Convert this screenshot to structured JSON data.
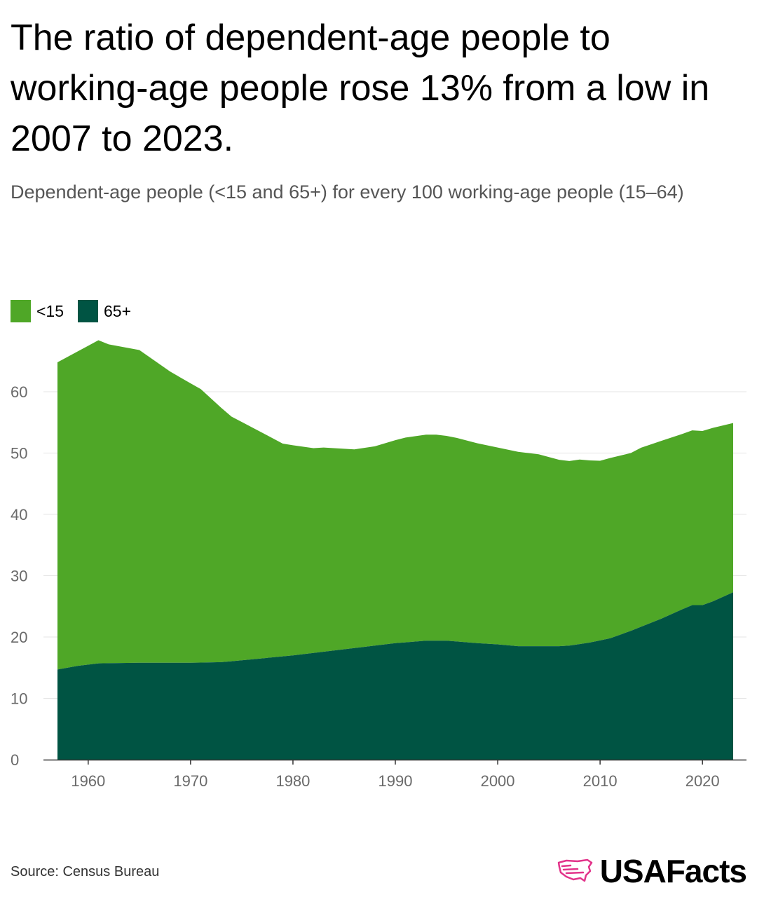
{
  "title": "The ratio of dependent-age people to working-age people rose 13% from a low in 2007 to 2023.",
  "subtitle": "Dependent-age people (<15 and 65+) for every 100 working-age people (15–64)",
  "source": "Source: Census Bureau",
  "logo": {
    "text": "USAFacts",
    "icon": "usa-map-icon"
  },
  "colors": {
    "under15": "#4fa727",
    "over65": "#005443",
    "grid": "#e4e4e4",
    "axis": "#333333"
  },
  "chart_data": {
    "type": "area",
    "stacked": true,
    "xlim": [
      1957,
      2023
    ],
    "ylim": [
      0,
      65
    ],
    "yticks": [
      0,
      10,
      20,
      30,
      40,
      50,
      60
    ],
    "xticks": [
      1960,
      1970,
      1980,
      1990,
      2000,
      2010,
      2020
    ],
    "grid": true,
    "legend_position": "top-left",
    "series": [
      {
        "name": "65+",
        "x": [
          1957,
          1959,
          1961,
          1965,
          1970,
          1973,
          1975,
          1980,
          1983,
          1986,
          1990,
          1993,
          1995,
          1998,
          2000,
          2002,
          2006,
          2007,
          2009,
          2011,
          2013,
          2016,
          2018,
          2019,
          2020,
          2021,
          2023
        ],
        "values": [
          14.7,
          15.3,
          15.7,
          15.8,
          15.8,
          15.9,
          16.2,
          17.0,
          17.6,
          18.2,
          19.0,
          19.4,
          19.4,
          19.0,
          18.8,
          18.5,
          18.5,
          18.6,
          19.1,
          19.8,
          21.0,
          23.0,
          24.5,
          25.2,
          25.2,
          25.8,
          27.3
        ]
      },
      {
        "name": "<15",
        "x": [
          1957,
          1959,
          1961,
          1962,
          1965,
          1968,
          1971,
          1974,
          1977,
          1979,
          1982,
          1983,
          1986,
          1988,
          1990,
          1991,
          1993,
          1994,
          1996,
          1998,
          2000,
          2002,
          2004,
          2006,
          2007,
          2008,
          2009,
          2010,
          2011,
          2013,
          2014,
          2016,
          2018,
          2019,
          2020,
          2021,
          2023
        ],
        "values": [
          50.1,
          51.3,
          52.7,
          52.0,
          51.0,
          47.5,
          44.6,
          39.9,
          36.8,
          34.7,
          33.4,
          33.3,
          32.4,
          32.5,
          33.1,
          33.4,
          33.6,
          33.6,
          33.2,
          32.6,
          32.1,
          31.7,
          31.3,
          30.4,
          30.1,
          30.1,
          29.7,
          29.3,
          29.4,
          29.0,
          29.2,
          29.0,
          28.6,
          28.5,
          28.4,
          28.3,
          27.6
        ]
      }
    ]
  }
}
